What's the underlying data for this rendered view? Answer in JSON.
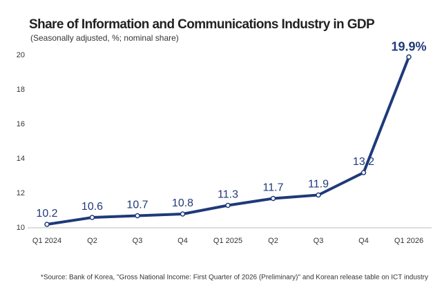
{
  "chart_data": {
    "type": "line",
    "title": "Share of Information and Communications Industry in GDP",
    "subtitle": "(Seasonally adjusted, %; nominal share)",
    "source": "*Source: Bank of Korea, \"Gross National Income: First Quarter of 2026 (Preliminary)\" and Korean release table on ICT industry",
    "categories": [
      "Q1 2024",
      "Q2",
      "Q3",
      "Q4",
      "Q1 2025",
      "Q2",
      "Q3",
      "Q4",
      "Q1 2026"
    ],
    "values": [
      10.2,
      10.6,
      10.7,
      10.8,
      11.3,
      11.7,
      11.9,
      13.2,
      19.9
    ],
    "value_labels": [
      "10.2",
      "10.6",
      "10.7",
      "10.8",
      "11.3",
      "11.7",
      "11.9",
      "13.2",
      "19.9%"
    ],
    "color": "#1f3a7a",
    "ylim": [
      10,
      20
    ],
    "yticks": [
      10,
      12,
      14,
      16,
      18,
      20
    ],
    "grid": false
  }
}
